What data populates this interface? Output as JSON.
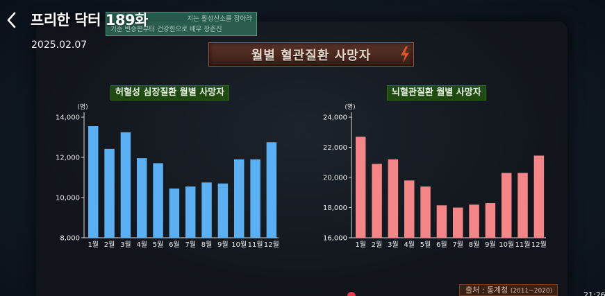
{
  "header": {
    "title": "프리한 닥터 189화",
    "date": "2025.02.07"
  },
  "caption": {
    "line1": "지는 활성산소를 잡아라",
    "line2": "기준 변승편부터 건강한으로 배우 장준진"
  },
  "banner": {
    "title": "월별 혈관질환 사망자"
  },
  "source": {
    "label": "출처 : 통계청",
    "years": "(2011~2020)"
  },
  "time_display": "21:26",
  "chart_data": [
    {
      "type": "bar",
      "title": "허혈성 심장질환 월별 사망자",
      "unit": "(명)",
      "categories": [
        "1월",
        "2월",
        "3월",
        "4월",
        "5월",
        "6월",
        "7월",
        "8월",
        "9월",
        "10월",
        "11월",
        "12월"
      ],
      "values": [
        13550,
        12420,
        13250,
        11960,
        11710,
        10450,
        10550,
        10750,
        10700,
        11900,
        11900,
        12750
      ],
      "ylim": [
        8000,
        14000
      ],
      "yticks": [
        "8,000",
        "10,000",
        "12,000",
        "14,000"
      ],
      "color": "#5ab0f2"
    },
    {
      "type": "bar",
      "title": "뇌혈관질환 월별 사망자",
      "unit": "(명)",
      "categories": [
        "1월",
        "2월",
        "3월",
        "4월",
        "5월",
        "6월",
        "7월",
        "8월",
        "9월",
        "10월",
        "11월",
        "12월"
      ],
      "values": [
        22700,
        20900,
        21200,
        19800,
        19400,
        18150,
        18000,
        18200,
        18300,
        20300,
        20300,
        21450
      ],
      "ylim": [
        16000,
        24000
      ],
      "yticks": [
        "16,000",
        "18,000",
        "20,000",
        "22,000",
        "24,000"
      ],
      "color": "#f58687"
    }
  ]
}
